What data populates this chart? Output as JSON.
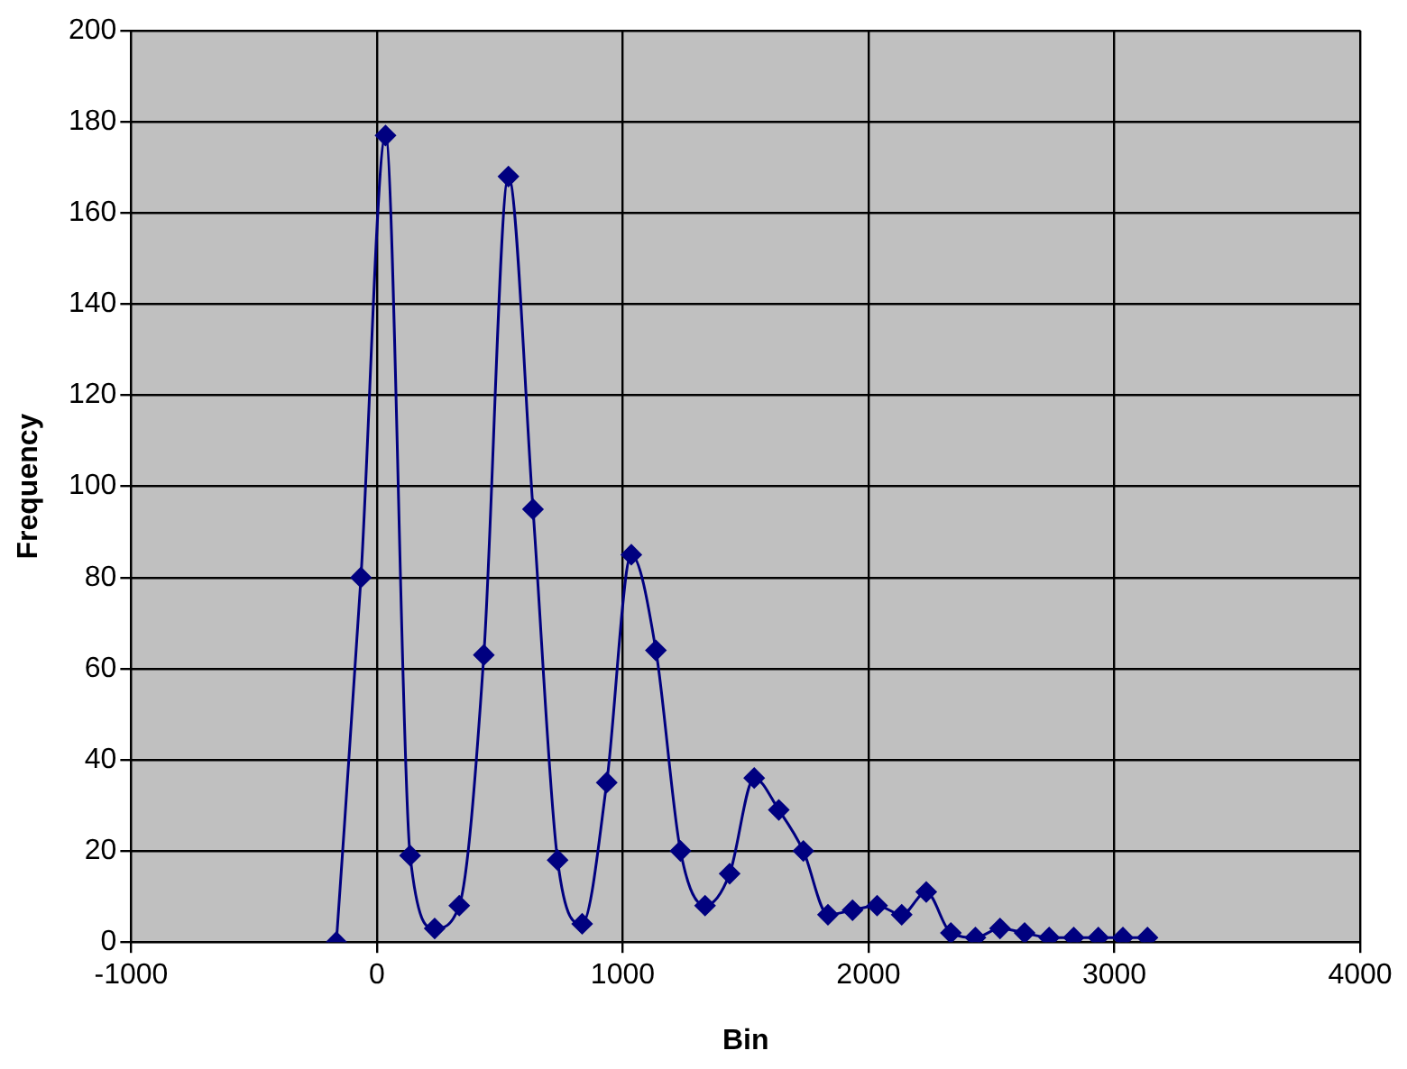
{
  "chart_data": {
    "type": "line",
    "xlabel": "Bin",
    "ylabel": "Frequency",
    "x": [
      -165,
      -65,
      35,
      135,
      235,
      335,
      435,
      535,
      635,
      735,
      835,
      935,
      1035,
      1135,
      1235,
      1335,
      1435,
      1535,
      1635,
      1735,
      1835,
      1935,
      2035,
      2135,
      2235,
      2335,
      2435,
      2535,
      2635,
      2735,
      2835,
      2935,
      3035,
      3135
    ],
    "series": [
      {
        "color": "#000080",
        "values": [
          0,
          80,
          177,
          19,
          3,
          8,
          63,
          168,
          95,
          18,
          4,
          35,
          85,
          64,
          20,
          8,
          15,
          36,
          29,
          20,
          6,
          7,
          8,
          6,
          11,
          2,
          1,
          3,
          2,
          1,
          1,
          1,
          1,
          1
        ]
      }
    ],
    "xlim": [
      -1000,
      4000
    ],
    "xticks": [
      -1000,
      0,
      1000,
      2000,
      3000,
      4000
    ],
    "ylim": [
      0,
      200
    ],
    "yticks": [
      0,
      20,
      40,
      60,
      80,
      100,
      120,
      140,
      160,
      180,
      200
    ],
    "grid": true,
    "legend": false,
    "marker": "diamond",
    "line_style": "solid"
  }
}
